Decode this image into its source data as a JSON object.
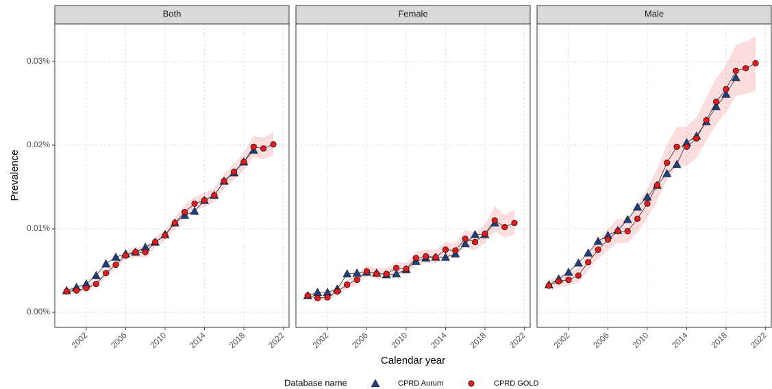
{
  "y_label": "Prevalence",
  "x_label": "Calendar year",
  "legend_title": "Database name",
  "chart_data": [
    {
      "type": "line",
      "title": "Both",
      "x": [
        2000,
        2001,
        2002,
        2003,
        2004,
        2005,
        2006,
        2007,
        2008,
        2009,
        2010,
        2011,
        2012,
        2013,
        2014,
        2015,
        2016,
        2017,
        2018,
        2019,
        2020,
        2021
      ],
      "xlim": [
        1998.8,
        2022.6
      ],
      "xticks": [
        2002,
        2006,
        2010,
        2014,
        2018,
        2022
      ],
      "ylim": [
        -0.0018,
        0.0345
      ],
      "yticks": [
        {
          "value": 0,
          "label": "0.00%"
        },
        {
          "value": 0.01,
          "label": "0.01%"
        },
        {
          "value": 0.02,
          "label": "0.02%"
        },
        {
          "value": 0.03,
          "label": "0.03%"
        }
      ],
      "grid": true,
      "series": [
        {
          "name": "CPRD Aurum",
          "color": "#1f3f7a",
          "marker": "triangle",
          "values": [
            0.0026,
            0.003,
            0.0034,
            0.0044,
            0.0058,
            0.0066,
            0.007,
            0.0072,
            0.0078,
            0.0084,
            0.0093,
            0.0107,
            0.0116,
            0.0121,
            0.0134,
            0.014,
            0.0157,
            0.0167,
            0.018,
            0.0194,
            null,
            null
          ]
        },
        {
          "name": "CPRD GOLD",
          "color": "#e41a1c",
          "marker": "circle",
          "values": [
            0.0025,
            0.0026,
            0.0029,
            0.0034,
            0.0047,
            0.0057,
            0.0068,
            0.0072,
            0.0072,
            0.0084,
            0.0092,
            0.0107,
            0.012,
            0.013,
            0.0134,
            0.014,
            0.0157,
            0.0168,
            0.018,
            0.0198,
            0.0196,
            0.0201
          ],
          "lower": [
            0.0022,
            0.0023,
            0.0025,
            0.003,
            0.0042,
            0.0052,
            0.0063,
            0.0066,
            0.0066,
            0.0078,
            0.0086,
            0.01,
            0.0113,
            0.0122,
            0.0126,
            0.0132,
            0.0148,
            0.0158,
            0.017,
            0.0186,
            0.0183,
            0.0188
          ],
          "upper": [
            0.0029,
            0.003,
            0.0033,
            0.0038,
            0.0052,
            0.0062,
            0.0074,
            0.0078,
            0.0078,
            0.009,
            0.0099,
            0.0114,
            0.0128,
            0.0138,
            0.0143,
            0.0149,
            0.0166,
            0.0178,
            0.0191,
            0.0211,
            0.0209,
            0.0216
          ]
        }
      ]
    },
    {
      "type": "line",
      "title": "Female",
      "x": [
        2000,
        2001,
        2002,
        2003,
        2004,
        2005,
        2006,
        2007,
        2008,
        2009,
        2010,
        2011,
        2012,
        2013,
        2014,
        2015,
        2016,
        2017,
        2018,
        2019,
        2020,
        2021
      ],
      "xlim": [
        1998.8,
        2022.6
      ],
      "xticks": [
        2002,
        2006,
        2010,
        2014,
        2018,
        2022
      ],
      "ylim": [
        -0.0018,
        0.0345
      ],
      "yticks": [
        0,
        0.01,
        0.02,
        0.03
      ],
      "grid": true,
      "series": [
        {
          "name": "CPRD Aurum",
          "color": "#1f3f7a",
          "marker": "triangle",
          "values": [
            0.002,
            0.0024,
            0.0024,
            0.0028,
            0.0046,
            0.0047,
            0.0048,
            0.0047,
            0.0045,
            0.0046,
            0.0051,
            0.0061,
            0.0065,
            0.0066,
            0.0066,
            0.007,
            0.0082,
            0.0093,
            0.0093,
            0.0107,
            null,
            null
          ]
        },
        {
          "name": "CPRD GOLD",
          "color": "#e41a1c",
          "marker": "circle",
          "values": [
            0.002,
            0.0017,
            0.0018,
            0.0025,
            0.0033,
            0.0039,
            0.0049,
            0.0046,
            0.0046,
            0.0053,
            0.0052,
            0.0065,
            0.0067,
            0.0066,
            0.0075,
            0.0074,
            0.0088,
            0.0084,
            0.0094,
            0.011,
            0.0102,
            0.0107
          ],
          "lower": [
            0.0016,
            0.0013,
            0.0014,
            0.002,
            0.0028,
            0.0033,
            0.0043,
            0.004,
            0.004,
            0.0046,
            0.0045,
            0.0057,
            0.0059,
            0.0058,
            0.0066,
            0.0065,
            0.0078,
            0.0074,
            0.0083,
            0.0097,
            0.0089,
            0.0093
          ],
          "upper": [
            0.0024,
            0.0021,
            0.0022,
            0.003,
            0.0039,
            0.0045,
            0.0056,
            0.0053,
            0.0053,
            0.006,
            0.0059,
            0.0073,
            0.0075,
            0.0075,
            0.0084,
            0.0083,
            0.0099,
            0.0095,
            0.0105,
            0.0127,
            0.0117,
            0.0123
          ]
        }
      ]
    },
    {
      "type": "line",
      "title": "Male",
      "x": [
        2000,
        2001,
        2002,
        2003,
        2004,
        2005,
        2006,
        2007,
        2008,
        2009,
        2010,
        2011,
        2012,
        2013,
        2014,
        2015,
        2016,
        2017,
        2018,
        2019,
        2020,
        2021
      ],
      "xlim": [
        1998.8,
        2022.6
      ],
      "xticks": [
        2002,
        2006,
        2010,
        2014,
        2018,
        2022
      ],
      "ylim": [
        -0.0018,
        0.0345
      ],
      "yticks": [
        0,
        0.01,
        0.02,
        0.03
      ],
      "grid": true,
      "series": [
        {
          "name": "CPRD Aurum",
          "color": "#1f3f7a",
          "marker": "triangle",
          "values": [
            0.0033,
            0.004,
            0.0048,
            0.0059,
            0.0071,
            0.0085,
            0.0092,
            0.0098,
            0.0111,
            0.0126,
            0.0138,
            0.0152,
            0.0166,
            0.0177,
            0.0203,
            0.0211,
            0.0228,
            0.0246,
            0.0261,
            0.0281,
            null,
            null
          ]
        },
        {
          "name": "CPRD GOLD",
          "color": "#e41a1c",
          "marker": "circle",
          "values": [
            0.0032,
            0.0037,
            0.0039,
            0.0044,
            0.006,
            0.0075,
            0.0087,
            0.0097,
            0.0097,
            0.0112,
            0.013,
            0.0152,
            0.0179,
            0.0198,
            0.0198,
            0.0208,
            0.023,
            0.0252,
            0.0267,
            0.0289,
            0.0292,
            0.0298
          ],
          "lower": [
            0.0026,
            0.003,
            0.0032,
            0.0036,
            0.005,
            0.0064,
            0.0074,
            0.0083,
            0.0083,
            0.0096,
            0.0113,
            0.0133,
            0.0158,
            0.0175,
            0.0175,
            0.0185,
            0.0205,
            0.0225,
            0.0239,
            0.0259,
            0.0261,
            0.0265
          ],
          "upper": [
            0.0038,
            0.0044,
            0.0047,
            0.0053,
            0.0071,
            0.0087,
            0.01,
            0.0112,
            0.0112,
            0.0129,
            0.0148,
            0.0172,
            0.0201,
            0.0222,
            0.0222,
            0.0233,
            0.0257,
            0.028,
            0.0296,
            0.032,
            0.0324,
            0.033
          ]
        }
      ]
    }
  ]
}
